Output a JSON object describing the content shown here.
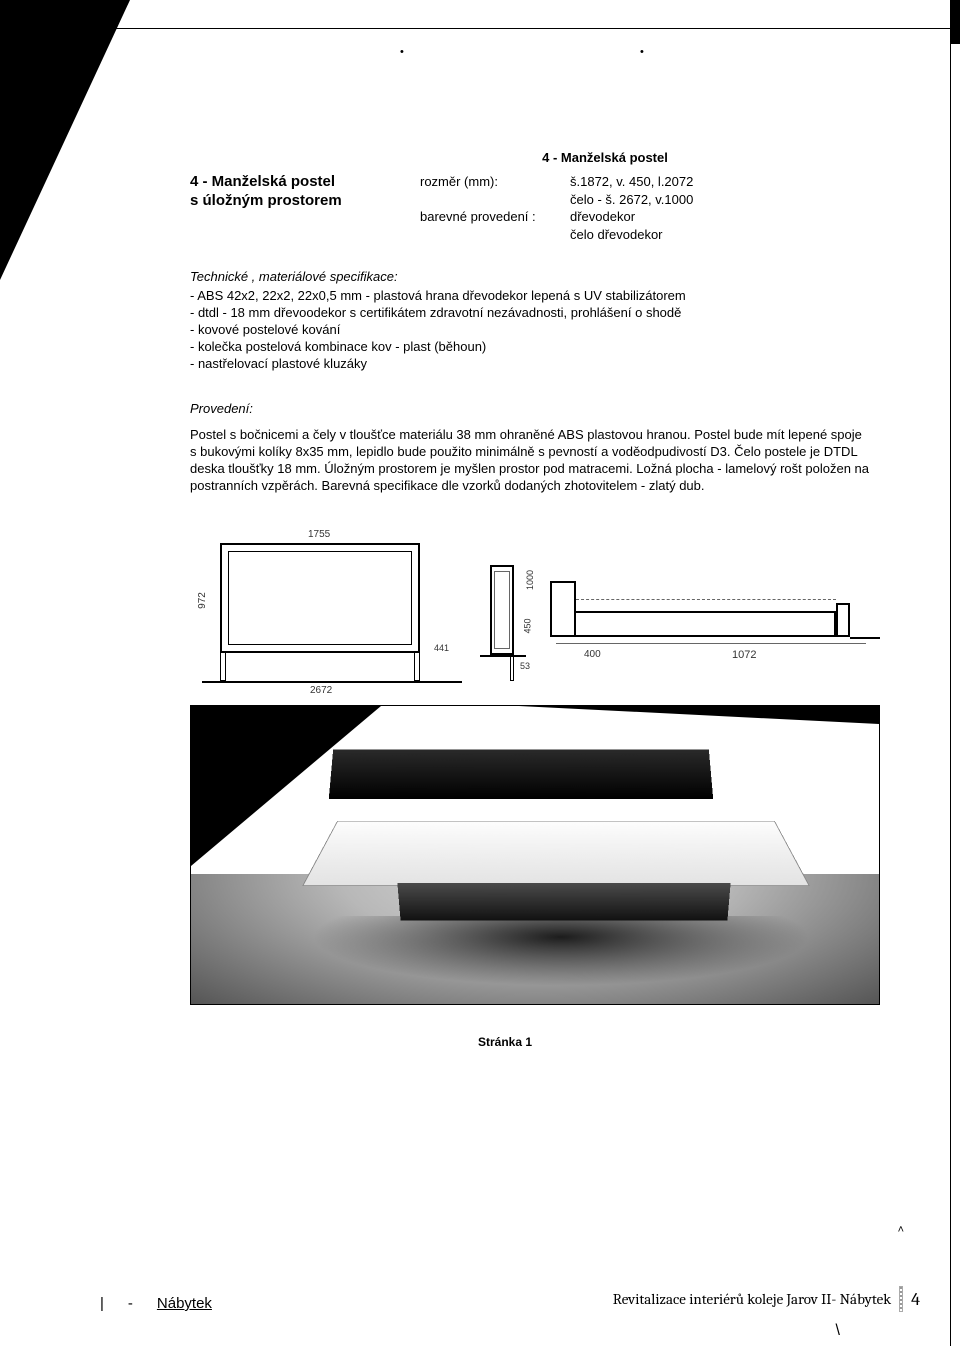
{
  "header": {
    "section_title_small": "4 - Manželská postel",
    "product_title_line1": "4 - Manželská postel",
    "product_title_line2": "s úložným prostorem",
    "specs": {
      "rozmer_label": "rozměr (mm):",
      "rozmer_value": "š.1872, v. 450, l.2072",
      "celo_value": "čelo -  š. 2672, v.1000",
      "barevne_label": "barevné provedení :",
      "barevne_value": "dřevodekor",
      "barevne_value2": "čelo dřevodekor"
    }
  },
  "tech": {
    "heading": "Technické , materiálové specifikace:",
    "items": [
      "- ABS 42x2, 22x2, 22x0,5 mm - plastová hrana dřevodekor lepená s UV stabilizátorem",
      "- dtdl - 18 mm dřevoodekor s certifikátem zdravotní nezávadnosti, prohlášení o shodě",
      "- kovové postelové kování",
      "- kolečka postelová kombinace kov - plast (běhoun)",
      "- nastřelovací plastové kluzáky"
    ]
  },
  "provedeni": {
    "heading": "Provedení:",
    "body": "Postel s bočnicemi a čely v tloušťce materiálu 38 mm ohraněné ABS plastovou hranou. Postel bude mít lepené spoje s bukovými kolíky 8x35 mm, lepidlo bude použito minimálně s pevností a voděodpudivostí D3. Čelo postele je DTDL deska tloušťky 18 mm. Úložným prostorem je myšlen prostor pod matracemi. Ložná plocha - lamelový rošt položen na postranních vzpěrách.  Barevná specifikace dle vzorků dodaných zhotovitelem - zlatý dub."
  },
  "drawing": {
    "dim_top": "1755",
    "dim_bottom": "2672",
    "dim_left": "972",
    "dim_441": "441",
    "side_dim_top": "1000",
    "side_dim_mid": "450",
    "side_53": "53",
    "elev_400": "400",
    "elev_1072": "1072"
  },
  "mid_label": "Stránka 1",
  "footer": {
    "left_link": "Nábytek",
    "right_text": "Revitalizace interiérů koleje Jarov II- Nábytek",
    "page_num": "4"
  }
}
